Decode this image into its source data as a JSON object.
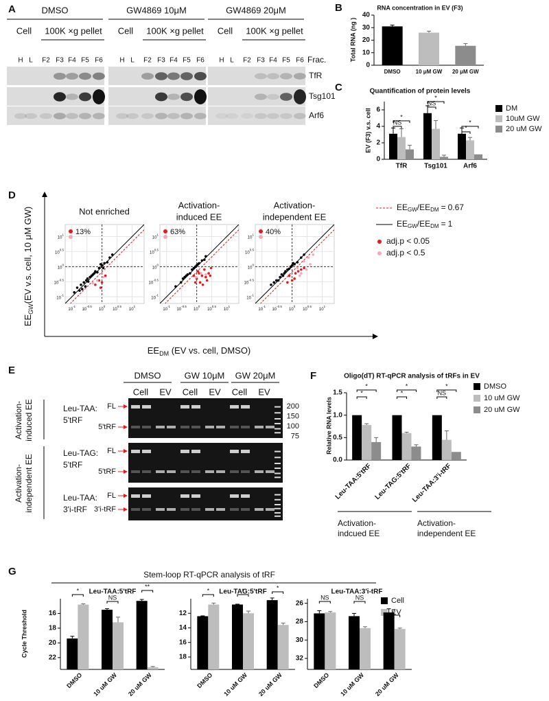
{
  "panel_labels": [
    "A",
    "B",
    "C",
    "D",
    "E",
    "F",
    "G"
  ],
  "blot": {
    "groups": [
      {
        "treatment": "DMSO",
        "cell": "Cell",
        "pellet": "100K ×g pellet",
        "lanes": [
          "H",
          "L",
          "F2",
          "F3",
          "F4",
          "F5",
          "F6"
        ]
      },
      {
        "treatment": "GW4869 10μM",
        "cell": "Cell",
        "pellet": "100K ×g pellet",
        "lanes": [
          "H",
          "L",
          "F2",
          "F3",
          "F4",
          "F5",
          "F6"
        ]
      },
      {
        "treatment": "GW4869 20μM",
        "cell": "Cell",
        "pellet": "100K ×g pellet",
        "lanes": [
          "H",
          "L",
          "F2",
          "F3",
          "F4",
          "F5",
          "F6"
        ]
      }
    ],
    "fraction_label": "Frac.",
    "proteins": [
      "TfR",
      "Tsg101",
      "Arf6"
    ]
  },
  "scatter_panel": {
    "ylabel": {
      "main": "EE",
      "sub": "GW",
      "rest": "(EV v.s. cell, 10 μM GW)"
    },
    "xlabel": {
      "main": "EE",
      "sub": "DM",
      "rest": " (EV vs. cell, DMSO)"
    },
    "lines": [
      {
        "a": "EE",
        "a_sub": "GW",
        "b": "/EE",
        "b_sub": "DM",
        "eq": "=",
        "ratio": 0.67,
        "color": "#e41a1c",
        "dash": true
      },
      {
        "a": "EE",
        "a_sub": "GW",
        "b": "/EE",
        "b_sub": "DM",
        "eq": "=",
        "ratio": 1,
        "color": "#000000",
        "dash": false
      }
    ]
  },
  "gel": {
    "treatments": [
      "DMSO",
      "GW 10μM",
      "GW 20μM"
    ],
    "lanes": [
      "Cell",
      "EV",
      "Cell",
      "EV",
      "Cell",
      "EV"
    ],
    "rows": [
      {
        "name": [
          "Leu-TAA:",
          "5'tRF"
        ],
        "bands": [
          "FL",
          "5'tRF"
        ]
      },
      {
        "name": [
          "Leu-TAG:",
          "5'tRF"
        ],
        "bands": [
          "FL",
          "5'tRF"
        ]
      },
      {
        "name": [
          "Leu-TAA:",
          "3'i-tRF"
        ],
        "bands": [
          "FL",
          "3'i-tRF"
        ]
      }
    ],
    "ladder": [
      200,
      150,
      100,
      75
    ],
    "groups": [
      [
        "Activation-",
        "induced EE"
      ],
      [
        "Activation-",
        "independent EE"
      ]
    ]
  },
  "g_title": "Stem-loop RT-qPCR analysis of tRF",
  "chart_data": [
    {
      "type": "bar",
      "title": "RNA  concentration in EV (F3)",
      "ylabel": "Total RNA (ng )",
      "categories": [
        "DMSO",
        "10 μM GW",
        "20 μM GW"
      ],
      "values": [
        31,
        26,
        15.5
      ],
      "errors": [
        1,
        1.2,
        1.8
      ],
      "colors": [
        "#000000",
        "#bdbdbd",
        "#8c8c8c"
      ],
      "ylim": [
        0,
        40
      ],
      "yticks": [
        0,
        10,
        20,
        30,
        40
      ]
    },
    {
      "type": "bar",
      "title": "Quantification of protein levels",
      "ylabel": "EV (F3) v.s. cell",
      "categories": [
        "TfR",
        "Tsg101",
        "Arf6"
      ],
      "series": [
        {
          "name": "DM",
          "color": "#000000",
          "values": [
            3.1,
            5.6,
            3.1
          ],
          "errors": [
            0.7,
            0.9,
            0.7
          ]
        },
        {
          "name": "10uM GW",
          "color": "#bdbdbd",
          "values": [
            2.7,
            3.7,
            2.3
          ],
          "errors": [
            1.0,
            1.0,
            0.35
          ]
        },
        {
          "name": "20 uM GW",
          "color": "#8c8c8c",
          "values": [
            1.2,
            0.3,
            0.6
          ],
          "errors": [
            0.5,
            0.2,
            null
          ]
        }
      ],
      "annotations": [
        "NS",
        "*",
        "NS",
        "*",
        "*",
        "*"
      ],
      "ylim": [
        0,
        7
      ],
      "yticks": [
        0,
        2,
        4,
        6
      ]
    },
    {
      "type": "scatter",
      "title": [
        "Not enriched"
      ],
      "annotation": "13%",
      "log": true,
      "xlim": [
        0.06,
        25
      ],
      "ylim": [
        0.06,
        25
      ],
      "xticks": [
        {
          "value": 0.1,
          "base": "10",
          "exp": "-1"
        },
        {
          "value": 0.316,
          "base": "10",
          "exp": "-0.5"
        },
        {
          "value": 1,
          "base": "10",
          "exp": "0"
        },
        {
          "value": 3.162,
          "base": "10",
          "exp": "0.5"
        },
        {
          "value": 10,
          "base": "10",
          "exp": "1"
        }
      ],
      "yticks": [
        {
          "value": 0.1,
          "base": "10",
          "exp": "-1"
        },
        {
          "value": 0.316,
          "base": "10",
          "exp": "-0.5"
        },
        {
          "value": 1,
          "base": "10",
          "exp": "0"
        },
        {
          "value": 3.162,
          "base": "10",
          "exp": "0.5"
        },
        {
          "value": 10,
          "base": "10",
          "exp": "1"
        }
      ],
      "series": [
        {
          "color": "#000000",
          "x": [
            0.12,
            0.15,
            0.18,
            0.2,
            0.25,
            0.3,
            0.35,
            0.4,
            0.45,
            0.5,
            0.6,
            0.7,
            0.8,
            1.0,
            1.2,
            1.5,
            1.8,
            2.2,
            0.22,
            0.28,
            0.55,
            0.9,
            1.1,
            0.33
          ],
          "y": [
            0.14,
            0.2,
            0.16,
            0.25,
            0.3,
            0.35,
            0.32,
            0.45,
            0.5,
            0.55,
            0.7,
            0.65,
            0.9,
            1.1,
            1.3,
            1.4,
            2.0,
            2.5,
            0.18,
            0.22,
            0.6,
            1.2,
            0.9,
            0.4
          ]
        },
        {
          "name": "adj.p < 0.05",
          "color": "#e41a1c",
          "x": [
            0.6,
            0.8,
            1.0,
            1.3,
            0.9
          ],
          "y": [
            0.25,
            0.35,
            0.3,
            0.5,
            0.2
          ]
        },
        {
          "name": "adj.p < 0.5",
          "color": "#f7a8b8",
          "x": [
            0.7,
            1.1,
            0.5
          ],
          "y": [
            0.35,
            0.45,
            0.28
          ]
        }
      ]
    },
    {
      "type": "scatter",
      "title": [
        "Activation-",
        "induced EE"
      ],
      "annotation": "63%",
      "log": true,
      "xlim": [
        0.06,
        25
      ],
      "ylim": [
        0.06,
        25
      ],
      "xticks": [
        {
          "value": 0.1,
          "base": "10",
          "exp": "-1"
        },
        {
          "value": 0.316,
          "base": "10",
          "exp": "-0.5"
        },
        {
          "value": 1,
          "base": "10",
          "exp": "0"
        },
        {
          "value": 3.162,
          "base": "10",
          "exp": "0.5"
        },
        {
          "value": 10,
          "base": "10",
          "exp": "1"
        }
      ],
      "yticks": [
        {
          "value": 0.1,
          "base": "10",
          "exp": "-1"
        },
        {
          "value": 0.316,
          "base": "10",
          "exp": "-0.5"
        },
        {
          "value": 1,
          "base": "10",
          "exp": "0"
        },
        {
          "value": 3.162,
          "base": "10",
          "exp": "0.5"
        },
        {
          "value": 10,
          "base": "10",
          "exp": "1"
        }
      ],
      "series": [
        {
          "color": "#000000",
          "x": [
            0.2,
            0.3,
            0.4,
            0.5,
            0.6,
            0.7,
            0.8,
            1.0,
            1.2,
            1.5,
            1.8,
            2.0,
            0.35,
            0.45,
            0.9,
            1.1
          ],
          "y": [
            0.22,
            0.3,
            0.45,
            0.55,
            0.6,
            0.8,
            0.9,
            1.1,
            1.3,
            1.6,
            1.7,
            2.2,
            0.4,
            0.5,
            1.0,
            1.2
          ]
        },
        {
          "color": "#e41a1c",
          "x": [
            0.8,
            1.0,
            1.2,
            1.5,
            1.8,
            2.0,
            2.5,
            3.0,
            1.3,
            0.9,
            2.2,
            1.6,
            2.8,
            1.1
          ],
          "y": [
            0.5,
            0.4,
            0.6,
            0.5,
            0.8,
            0.45,
            0.6,
            0.9,
            0.3,
            0.3,
            0.35,
            0.25,
            0.5,
            0.7
          ]
        },
        {
          "color": "#f7a8b8",
          "x": [
            1.4,
            2.0,
            0.95
          ],
          "y": [
            0.6,
            0.55,
            0.45
          ]
        }
      ]
    },
    {
      "type": "scatter",
      "title": [
        "Activation-",
        "independent EE"
      ],
      "annotation": "40%",
      "log": true,
      "xlim": [
        0.06,
        25
      ],
      "ylim": [
        0.06,
        25
      ],
      "xticks": [
        {
          "value": 0.1,
          "base": "10",
          "exp": "-1"
        },
        {
          "value": 0.316,
          "base": "10",
          "exp": "-0.5"
        },
        {
          "value": 1,
          "base": "10",
          "exp": "0"
        },
        {
          "value": 3.162,
          "base": "10",
          "exp": "0.5"
        },
        {
          "value": 10,
          "base": "10",
          "exp": "1"
        }
      ],
      "yticks": [
        {
          "value": 0.1,
          "base": "10",
          "exp": "-1"
        },
        {
          "value": 0.316,
          "base": "10",
          "exp": "-0.5"
        },
        {
          "value": 1,
          "base": "10",
          "exp": "0"
        },
        {
          "value": 3.162,
          "base": "10",
          "exp": "0.5"
        },
        {
          "value": 10,
          "base": "10",
          "exp": "1"
        }
      ],
      "series": [
        {
          "color": "#000000",
          "x": [
            0.2,
            0.25,
            0.3,
            0.4,
            0.5,
            0.6,
            0.7,
            0.8,
            1.0,
            1.2,
            1.5,
            2.0,
            2.5,
            0.35,
            0.45,
            0.9,
            1.1,
            0.55
          ],
          "y": [
            0.25,
            0.3,
            0.35,
            0.45,
            0.5,
            0.7,
            0.8,
            0.85,
            1.1,
            1.2,
            1.4,
            2.0,
            2.5,
            0.35,
            0.55,
            1.0,
            1.3,
            0.6
          ]
        },
        {
          "color": "#e41a1c",
          "x": [
            0.8,
            1.0,
            1.3,
            1.6,
            2.0,
            2.5,
            0.7,
            1.2
          ],
          "y": [
            0.5,
            0.35,
            0.6,
            0.7,
            0.8,
            0.9,
            0.3,
            0.4
          ]
        },
        {
          "color": "#f7a8b8",
          "x": [
            1.5,
            2.5,
            3.5,
            4.0,
            2.0,
            3.0,
            5.0,
            1.8
          ],
          "y": [
            0.9,
            1.5,
            2.0,
            1.2,
            0.6,
            0.8,
            2.5,
            0.5
          ]
        }
      ]
    },
    {
      "type": "bar",
      "title": "Oligo(dT) RT-qPCR analysis of tRFs in EV",
      "ylabel": "Relative RNA levels",
      "categories": [
        "Leu-TAA:5'tRF",
        "Leu-TAG:5'tRF",
        "Leu-TAA:3'i-tRF"
      ],
      "series": [
        {
          "name": "DMSO",
          "color": "#000000",
          "values": [
            1,
            1,
            1
          ]
        },
        {
          "name": "10 uM GW",
          "color": "#bdbdbd",
          "values": [
            0.78,
            0.6,
            0.45
          ],
          "errors": [
            0.03,
            0.02,
            0.2
          ]
        },
        {
          "name": "20 uM GW",
          "color": "#8c8c8c",
          "values": [
            0.4,
            0.3,
            0.18
          ],
          "errors": [
            0.1,
            0.04,
            null
          ]
        }
      ],
      "annotations": [
        "*",
        "*",
        "*",
        "*",
        "*",
        "NS"
      ],
      "group_labels": [
        [
          "Activation-",
          "indcued EE"
        ],
        [
          "Activation-",
          "independent EE"
        ]
      ],
      "ylim": [
        0,
        1.5
      ],
      "yticks": [
        {
          "value": 0,
          "label": "0.0"
        },
        0.5,
        {
          "value": 1,
          "label": "1.0"
        },
        1.5
      ]
    },
    {
      "type": "bar",
      "title": "Leu-TAA:5'tRF",
      "ylabel": "Cycle Threshold",
      "categories": [
        "DMSO",
        "10 uM GW",
        "20 uM GW"
      ],
      "series": [
        {
          "name": "Cell",
          "color": "#000000",
          "values": [
            19.4,
            15.5,
            14.3
          ],
          "errors": [
            0.3,
            0.15,
            0.2
          ]
        },
        {
          "name": "EV",
          "color": "#bdbdbd",
          "values": [
            14.8,
            17.2,
            23.3
          ],
          "errors": [
            0.1,
            0.7,
            0.1
          ]
        }
      ],
      "annotations": [
        "*",
        "NS",
        "**"
      ],
      "ylim": [
        23.6,
        14
      ],
      "yticks": [
        16,
        18,
        20,
        22
      ]
    },
    {
      "type": "bar",
      "title": "Leu-TAG:5'tRF",
      "categories": [
        "DMSO",
        "10 uM GW",
        "20 uM GW"
      ],
      "series": [
        {
          "color": "#000000",
          "values": [
            12.4,
            10.8,
            10.2
          ],
          "errors": [
            0.05,
            0.05,
            0.3
          ]
        },
        {
          "color": "#bdbdbd",
          "values": [
            10.8,
            12.0,
            13.6
          ],
          "errors": [
            0.2,
            0.3,
            0.25
          ]
        }
      ],
      "annotations": [
        "*",
        "*",
        "*"
      ],
      "ylim": [
        19.7,
        10
      ],
      "yticks": [
        12,
        14,
        16,
        18
      ]
    },
    {
      "type": "bar",
      "title": "Leu-TAA:3'i-tRF",
      "categories": [
        "DMSO",
        "10 uM GW",
        "20 uM GW"
      ],
      "series": [
        {
          "color": "#000000",
          "values": [
            27.1,
            27.4,
            27.0
          ],
          "errors": [
            0.3,
            0.3,
            0.4
          ]
        },
        {
          "color": "#bdbdbd",
          "values": [
            27.0,
            28.7,
            28.8
          ],
          "errors": [
            0.1,
            0.15,
            0.1
          ]
        }
      ],
      "annotations": [
        "NS",
        "NS",
        "*"
      ],
      "ylim": [
        33.2,
        25.5
      ],
      "yticks": [
        26,
        28,
        30,
        32
      ]
    }
  ]
}
